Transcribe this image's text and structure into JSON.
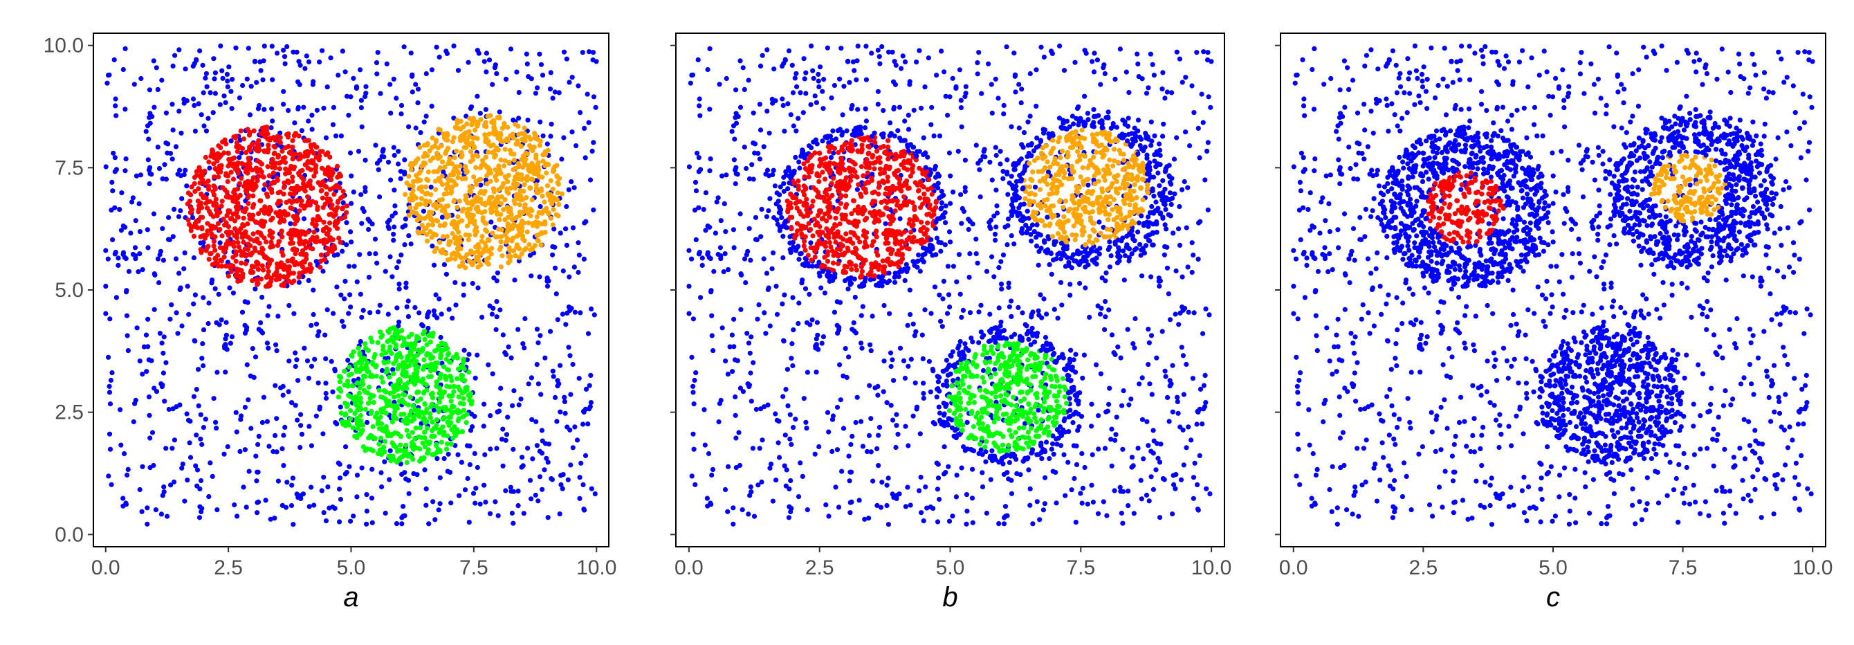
{
  "chart_data": [
    {
      "type": "scatter",
      "panel_label": "a",
      "xlim": [
        0,
        10
      ],
      "ylim": [
        0,
        10
      ],
      "x_ticks": [
        "0.0",
        "2.5",
        "5.0",
        "7.5",
        "10.0"
      ],
      "y_ticks": [
        "0.0",
        "2.5",
        "5.0",
        "7.5",
        "10.0"
      ],
      "grid": false,
      "series": [
        {
          "color": "#0000ff",
          "description": "uniform background noise over [0,10]x[0,10]",
          "approx_points": 1400
        },
        {
          "color": "#ff0000",
          "center": [
            3.3,
            6.7
          ],
          "radius": 1.65,
          "approx_points": 700
        },
        {
          "color": "#ffa500",
          "center": [
            7.7,
            7.0
          ],
          "radius": 1.6,
          "approx_points": 650
        },
        {
          "color": "#00ff00",
          "center": [
            6.1,
            2.85
          ],
          "radius": 1.4,
          "approx_points": 550
        }
      ]
    },
    {
      "type": "scatter",
      "panel_label": "b",
      "xlim": [
        0,
        10
      ],
      "ylim": [
        0,
        10
      ],
      "x_ticks": [
        "0.0",
        "2.5",
        "5.0",
        "7.5",
        "10.0"
      ],
      "y_ticks": [
        "0.0",
        "2.5",
        "5.0",
        "7.5",
        "10.0"
      ],
      "grid": false,
      "series": [
        {
          "color": "#0000ff",
          "description": "uniform background noise plus outer rings of the clusters",
          "approx_points": 1700
        },
        {
          "color": "#ff0000",
          "center": [
            3.3,
            6.7
          ],
          "radius": 1.45,
          "approx_points": 600
        },
        {
          "color": "#ffa500",
          "center": [
            7.6,
            7.1
          ],
          "radius": 1.2,
          "approx_points": 450
        },
        {
          "color": "#00ff00",
          "center": [
            6.1,
            2.8
          ],
          "radius": 1.15,
          "approx_points": 420
        }
      ]
    },
    {
      "type": "scatter",
      "panel_label": "c",
      "xlim": [
        0,
        10
      ],
      "ylim": [
        0,
        10
      ],
      "x_ticks": [
        "0.0",
        "2.5",
        "5.0",
        "7.5",
        "10.0"
      ],
      "y_ticks": [
        "0.0",
        "2.5",
        "5.0",
        "7.5",
        "10.0"
      ],
      "grid": false,
      "series": [
        {
          "color": "#0000ff",
          "description": "background noise plus all clusters except small cores",
          "approx_points": 2800
        },
        {
          "color": "#ff0000",
          "center": [
            3.3,
            6.7
          ],
          "radius": 0.75,
          "approx_points": 220
        },
        {
          "color": "#ffa500",
          "center": [
            7.6,
            7.1
          ],
          "radius": 0.72,
          "approx_points": 200
        }
      ]
    }
  ],
  "colors": {
    "noise": "#0000ff",
    "cluster_red": "#ff0000",
    "cluster_orange": "#ffa500",
    "cluster_green": "#00ff00",
    "axis": "#000000",
    "tick_text": "#4d4d4d"
  }
}
